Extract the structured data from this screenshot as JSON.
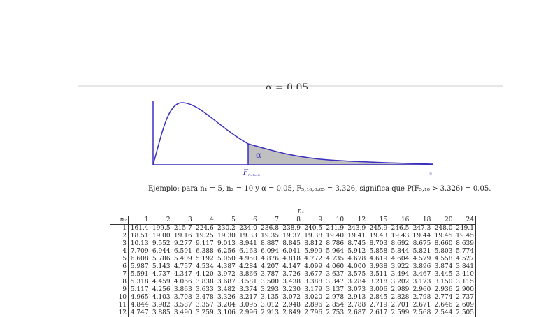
{
  "figure": {
    "title": "α = 0.05",
    "alpha_label": "α",
    "critical_label": "F",
    "critical_sub": "n₁,n₂,α",
    "x_end_label": "∞"
  },
  "caption": "Ejemplo: para n₁ = 5, n₂ = 10 y α = 0.05, F₅,₁₀,₀.₀₅ = 3.326, significa que P(F₅,₁₀ > 3.326) = 0.05.",
  "table": {
    "n1_label": "n₁",
    "n2_label": "n₂",
    "columns": [
      "1",
      "2",
      "3",
      "4",
      "5",
      "6",
      "7",
      "8",
      "9",
      "10",
      "12",
      "15",
      "16",
      "18",
      "20",
      "24"
    ],
    "rows": [
      {
        "n2": "1",
        "values": [
          "161.4",
          "199.5",
          "215.7",
          "224.6",
          "230.2",
          "234.0",
          "236.8",
          "238.9",
          "240.5",
          "241.9",
          "243.9",
          "245.9",
          "246.5",
          "247.3",
          "248.0",
          "249.1"
        ]
      },
      {
        "n2": "2",
        "values": [
          "18.51",
          "19.00",
          "19.16",
          "19.25",
          "19.30",
          "19.33",
          "19.35",
          "19.37",
          "19.38",
          "19.40",
          "19.41",
          "19.43",
          "19.43",
          "19.44",
          "19.45",
          "19.45"
        ]
      },
      {
        "n2": "3",
        "values": [
          "10.13",
          "9.552",
          "9.277",
          "9.117",
          "9.013",
          "8.941",
          "8.887",
          "8.845",
          "8.812",
          "8.786",
          "8.745",
          "8.703",
          "8.692",
          "8.675",
          "8.660",
          "8.639"
        ]
      },
      {
        "n2": "4",
        "values": [
          "7.709",
          "6.944",
          "6.591",
          "6.388",
          "6.256",
          "6.163",
          "6.094",
          "6.041",
          "5.999",
          "5.964",
          "5.912",
          "5.858",
          "5.844",
          "5.821",
          "5.803",
          "5.774"
        ]
      },
      {
        "n2": "5",
        "values": [
          "6.608",
          "5.786",
          "5.409",
          "5.192",
          "5.050",
          "4.950",
          "4.876",
          "4.818",
          "4.772",
          "4.735",
          "4.678",
          "4.619",
          "4.604",
          "4.579",
          "4.558",
          "4.527"
        ]
      },
      {
        "n2": "6",
        "values": [
          "5.987",
          "5.143",
          "4.757",
          "4.534",
          "4.387",
          "4.284",
          "4.207",
          "4.147",
          "4.099",
          "4.060",
          "4.000",
          "3.938",
          "3.922",
          "3.896",
          "3.874",
          "3.841"
        ]
      },
      {
        "n2": "7",
        "values": [
          "5.591",
          "4.737",
          "4.347",
          "4.120",
          "3.972",
          "3.866",
          "3.787",
          "3.726",
          "3.677",
          "3.637",
          "3.575",
          "3.511",
          "3.494",
          "3.467",
          "3.445",
          "3.410"
        ]
      },
      {
        "n2": "8",
        "values": [
          "5.318",
          "4.459",
          "4.066",
          "3.838",
          "3.687",
          "3.581",
          "3.500",
          "3.438",
          "3.388",
          "3.347",
          "3.284",
          "3.218",
          "3.202",
          "3.173",
          "3.150",
          "3.115"
        ]
      },
      {
        "n2": "9",
        "values": [
          "5.117",
          "4.256",
          "3.863",
          "3.633",
          "3.482",
          "3.374",
          "3.293",
          "3.230",
          "3.179",
          "3.137",
          "3.073",
          "3.006",
          "2.989",
          "2.960",
          "2.936",
          "2.900"
        ]
      },
      {
        "n2": "10",
        "values": [
          "4.965",
          "4.103",
          "3.708",
          "3.478",
          "3.326",
          "3.217",
          "3.135",
          "3.072",
          "3.020",
          "2.978",
          "2.913",
          "2.845",
          "2.828",
          "2.798",
          "2.774",
          "2.737"
        ]
      },
      {
        "n2": "11",
        "values": [
          "4.844",
          "3.982",
          "3.587",
          "3.357",
          "3.204",
          "3.095",
          "3.012",
          "2.948",
          "2.896",
          "2.854",
          "2.788",
          "2.719",
          "2.701",
          "2.671",
          "2.646",
          "2.609"
        ]
      },
      {
        "n2": "12",
        "values": [
          "4.747",
          "3.885",
          "3.490",
          "3.259",
          "3.106",
          "2.996",
          "2.913",
          "2.849",
          "2.796",
          "2.753",
          "2.687",
          "2.617",
          "2.599",
          "2.568",
          "2.544",
          "2.505"
        ]
      }
    ]
  },
  "colors": {
    "curve": "#3a2fc0",
    "shade": "#c0c0c0"
  }
}
